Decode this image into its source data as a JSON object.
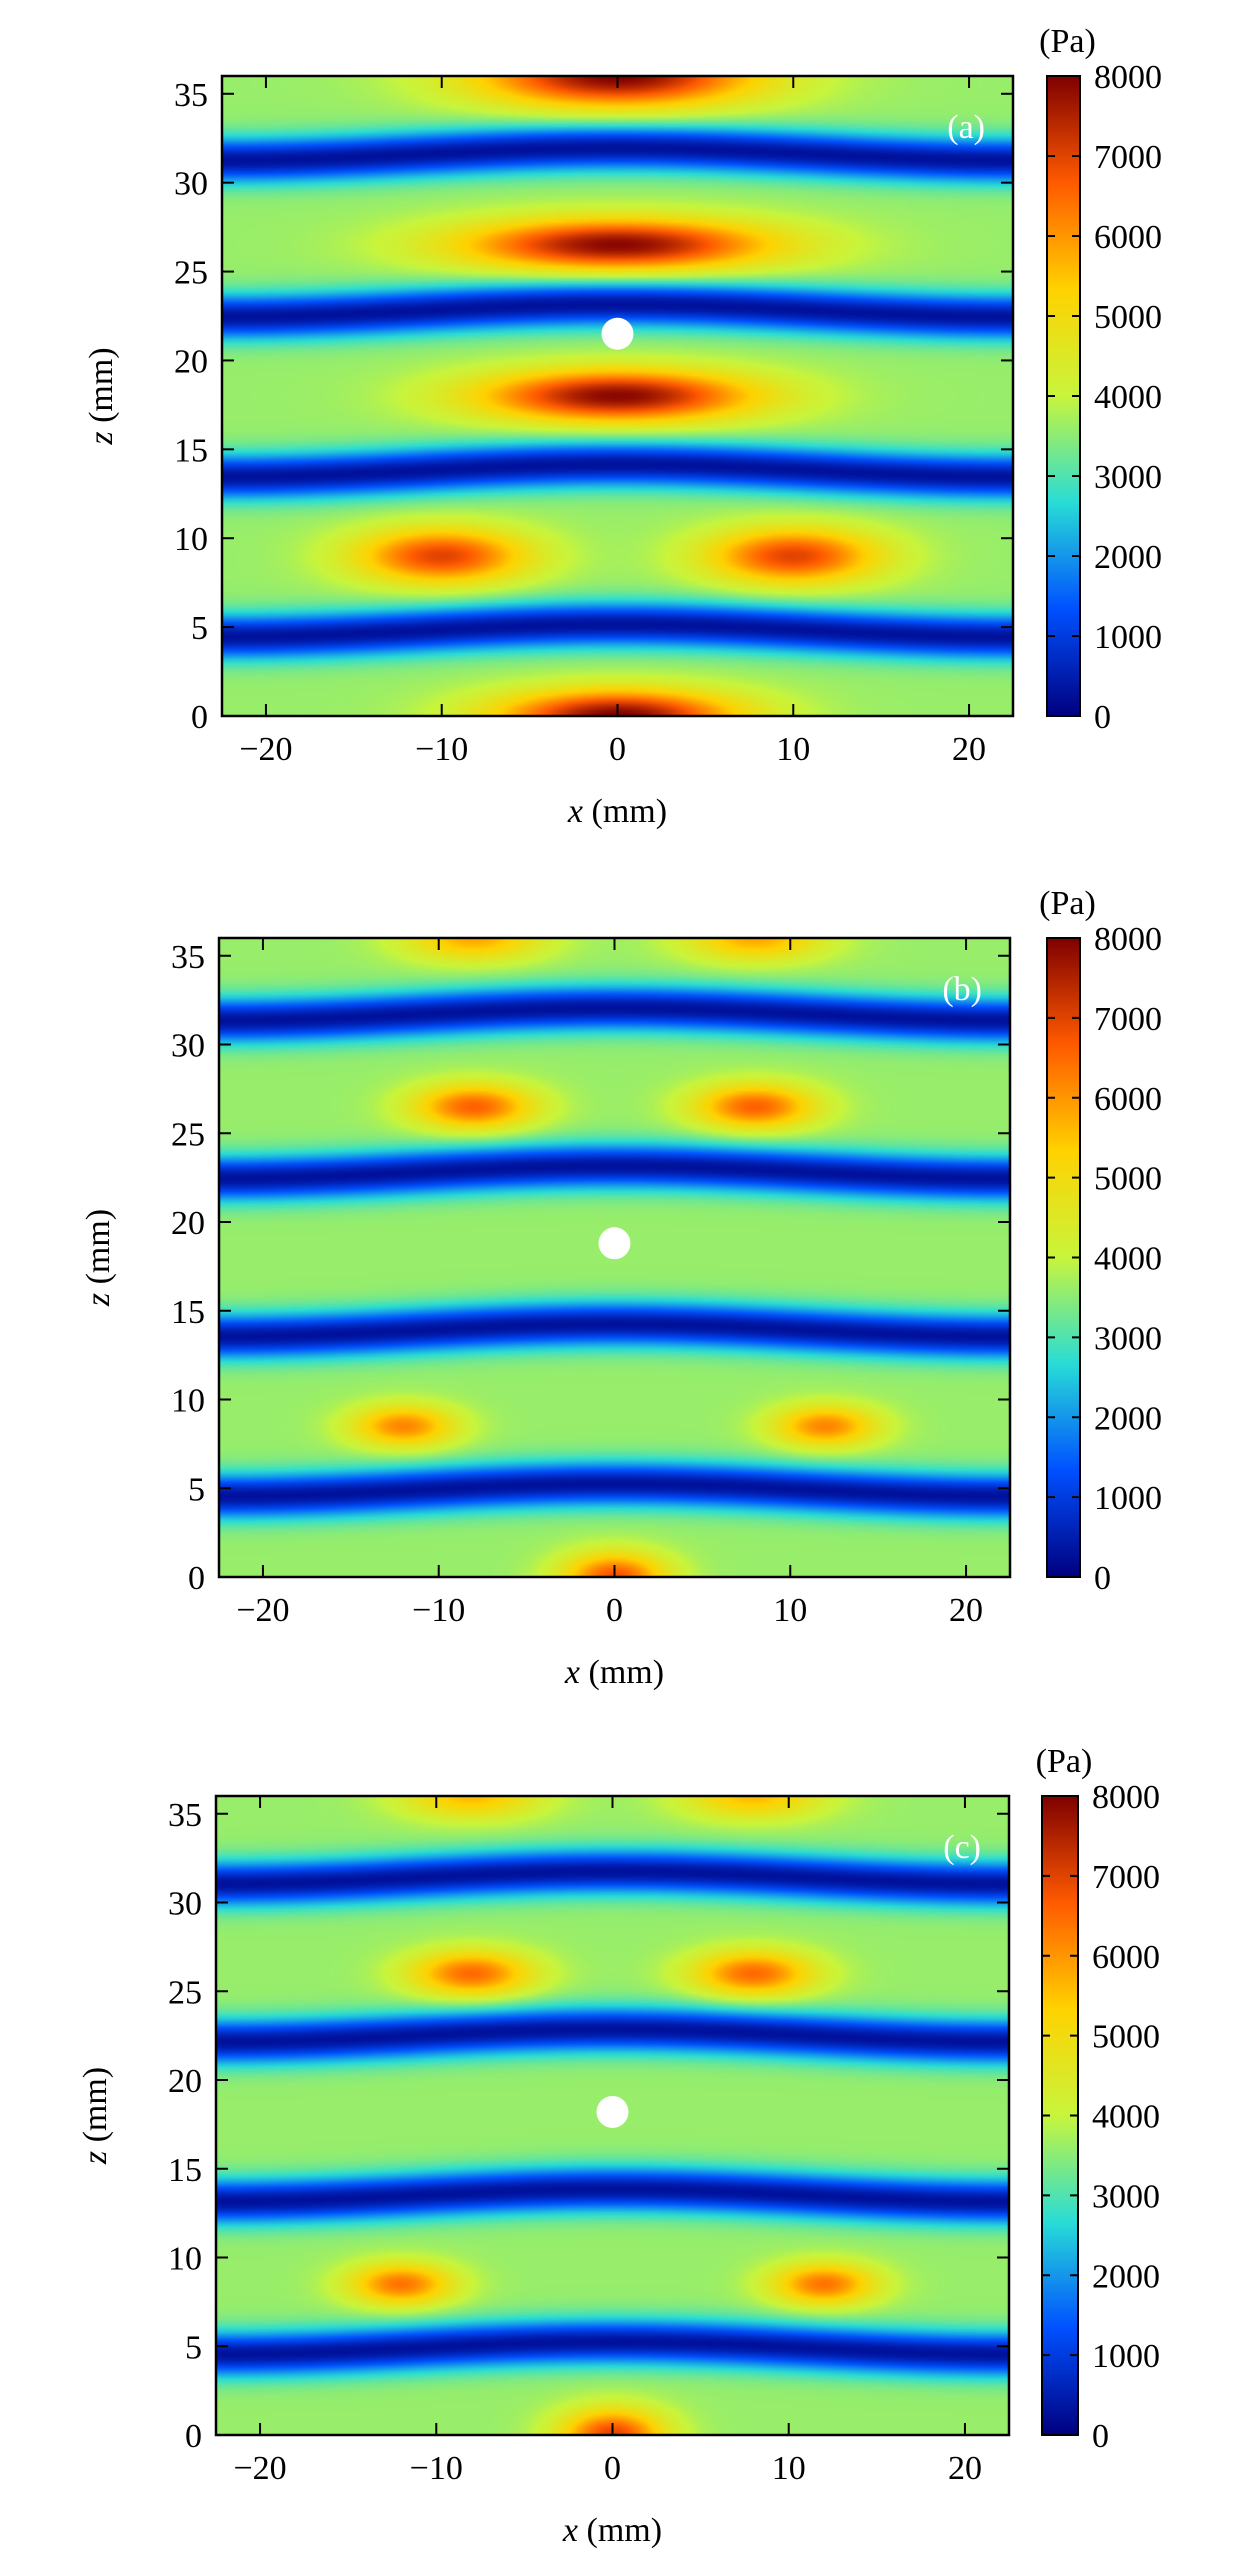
{
  "figure": {
    "colormap": [
      "#00007f",
      "#0050ff",
      "#28dcd6",
      "#c8f53c",
      "#ffd200",
      "#ff5a00",
      "#7f0000"
    ],
    "particle_color": "#ffffff"
  },
  "chart_data": [
    {
      "type": "heatmap",
      "panel_label": "(a)",
      "title": "",
      "xlabel_var": "x",
      "xlabel_unit": " (mm)",
      "ylabel_var": "z",
      "ylabel_unit": " (mm)",
      "xlim": [
        -22.5,
        22.5
      ],
      "ylim": [
        0,
        36
      ],
      "xticks": [
        -20,
        -10,
        0,
        10,
        20
      ],
      "yticks": [
        0,
        5,
        10,
        15,
        20,
        25,
        30,
        35
      ],
      "colorbar": {
        "label": "(Pa)",
        "min": 0,
        "max": 8000,
        "ticks": [
          0,
          1000,
          2000,
          3000,
          4000,
          5000,
          6000,
          7000,
          8000
        ]
      },
      "particle": {
        "x": 0,
        "z": 21.5
      },
      "nodes_z": [
        4.8,
        13.8,
        22.8,
        31.6
      ],
      "antinode_spots": [
        {
          "x": 0,
          "z": 0,
          "sx": 7,
          "sz": 1.5,
          "pressure": 8000
        },
        {
          "x": -10,
          "z": 9,
          "sx": 5,
          "sz": 1.6,
          "pressure": 7000
        },
        {
          "x": 10,
          "z": 9,
          "sx": 5,
          "sz": 1.6,
          "pressure": 7000
        },
        {
          "x": 0,
          "z": 18,
          "sx": 8,
          "sz": 1.5,
          "pressure": 7900
        },
        {
          "x": 0,
          "z": 26.5,
          "sx": 9,
          "sz": 1.5,
          "pressure": 7900
        },
        {
          "x": 0,
          "z": 36,
          "sx": 8,
          "sz": 1.8,
          "pressure": 8000
        }
      ]
    },
    {
      "type": "heatmap",
      "panel_label": "(b)",
      "title": "",
      "xlabel_var": "x",
      "xlabel_unit": " (mm)",
      "ylabel_var": "z",
      "ylabel_unit": " (mm)",
      "xlim": [
        -22.5,
        22.5
      ],
      "ylim": [
        0,
        36
      ],
      "xticks": [
        -20,
        -10,
        0,
        10,
        20
      ],
      "yticks": [
        0,
        5,
        10,
        15,
        20,
        25,
        30,
        35
      ],
      "colorbar": {
        "label": "(Pa)",
        "min": 0,
        "max": 8000,
        "ticks": [
          0,
          1000,
          2000,
          3000,
          4000,
          5000,
          6000,
          7000,
          8000
        ]
      },
      "particle": {
        "x": 0,
        "z": 18.8
      },
      "nodes_z": [
        4.9,
        13.9,
        22.8,
        31.7
      ],
      "antinode_spots": [
        {
          "x": 0,
          "z": 0,
          "sx": 3,
          "sz": 1.4,
          "pressure": 6800
        },
        {
          "x": -12,
          "z": 8.5,
          "sx": 3,
          "sz": 1.2,
          "pressure": 6200
        },
        {
          "x": 12,
          "z": 8.5,
          "sx": 3,
          "sz": 1.2,
          "pressure": 6200
        },
        {
          "x": -8,
          "z": 26.5,
          "sx": 3.5,
          "sz": 1.3,
          "pressure": 6600
        },
        {
          "x": 8,
          "z": 26.5,
          "sx": 3.5,
          "sz": 1.3,
          "pressure": 6600
        },
        {
          "x": -8,
          "z": 36,
          "sx": 4,
          "sz": 1.3,
          "pressure": 5800
        },
        {
          "x": 8,
          "z": 36,
          "sx": 4,
          "sz": 1.3,
          "pressure": 5800
        }
      ]
    },
    {
      "type": "heatmap",
      "panel_label": "(c)",
      "title": "",
      "xlabel_var": "x",
      "xlabel_unit": " (mm)",
      "ylabel_var": "z",
      "ylabel_unit": " (mm)",
      "xlim": [
        -22.5,
        22.5
      ],
      "ylim": [
        0,
        36
      ],
      "xticks": [
        -20,
        -10,
        0,
        10,
        20
      ],
      "yticks": [
        0,
        5,
        10,
        15,
        20,
        25,
        30,
        35
      ],
      "colorbar": {
        "label": "(Pa)",
        "min": 0,
        "max": 8000,
        "ticks": [
          0,
          1000,
          2000,
          3000,
          4000,
          5000,
          6000,
          7000,
          8000
        ]
      },
      "particle": {
        "x": 0,
        "z": 18.2
      },
      "nodes_z": [
        4.9,
        13.5,
        22.5,
        31.4
      ],
      "antinode_spots": [
        {
          "x": 0,
          "z": 0,
          "sx": 3,
          "sz": 1.5,
          "pressure": 7000
        },
        {
          "x": -12,
          "z": 8.5,
          "sx": 3,
          "sz": 1.2,
          "pressure": 6400
        },
        {
          "x": 12,
          "z": 8.5,
          "sx": 3,
          "sz": 1.2,
          "pressure": 6400
        },
        {
          "x": -8,
          "z": 26,
          "sx": 3.5,
          "sz": 1.3,
          "pressure": 6500
        },
        {
          "x": 8,
          "z": 26,
          "sx": 3.5,
          "sz": 1.3,
          "pressure": 6500
        },
        {
          "x": -8,
          "z": 36,
          "sx": 4,
          "sz": 1.3,
          "pressure": 5600
        },
        {
          "x": 8,
          "z": 36,
          "sx": 4,
          "sz": 1.3,
          "pressure": 5600
        }
      ]
    }
  ]
}
